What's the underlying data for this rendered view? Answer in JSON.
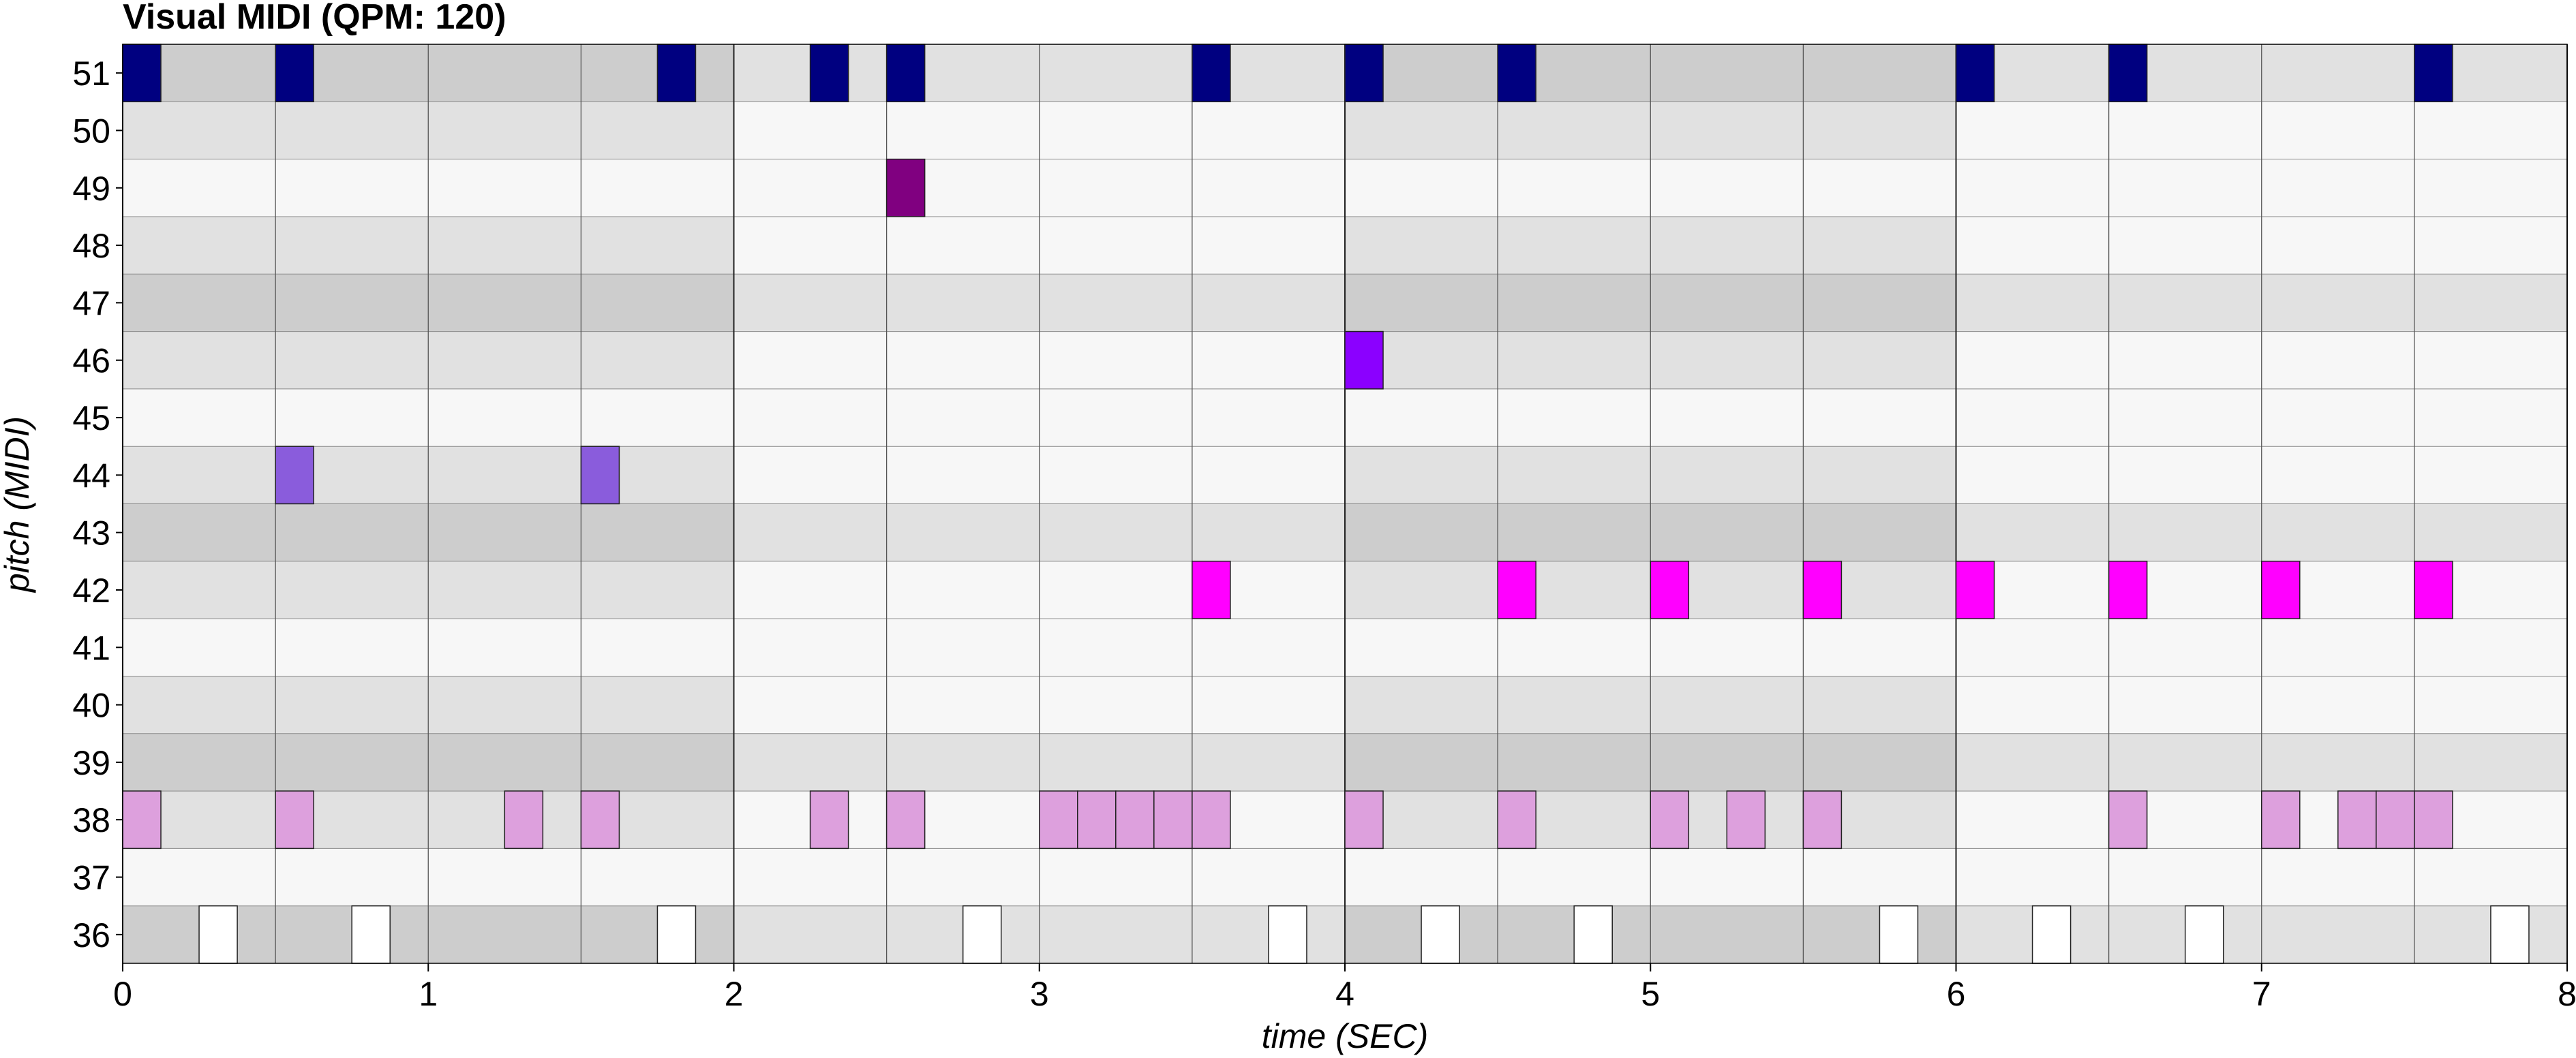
{
  "chart_data": {
    "type": "piano-roll",
    "title": "Visual MIDI (QPM: 120)",
    "xlabel": "time (SEC)",
    "ylabel": "pitch (MIDI)",
    "xlim": [
      0,
      8
    ],
    "ylim": [
      36,
      51
    ],
    "x_ticks": [
      "0",
      "1",
      "2",
      "3",
      "4",
      "5",
      "6",
      "7",
      "8"
    ],
    "y_ticks": [
      "36",
      "37",
      "38",
      "39",
      "40",
      "41",
      "42",
      "43",
      "44",
      "45",
      "46",
      "47",
      "48",
      "49",
      "50",
      "51"
    ],
    "grid": true,
    "beat_lines_sec": 0.5,
    "bar_lines_sec": 2.0,
    "note_duration_sec": 0.125,
    "background_bands": [
      "#cdcdcd",
      "#f7f7f7",
      "#e1e1e1",
      "#cdcdcd",
      "#e1e1e1",
      "#f7f7f7",
      "#e1e1e1",
      "#cdcdcd",
      "#e1e1e1",
      "#f7f7f7",
      "#e1e1e1",
      "#cdcdcd",
      "#e1e1e1",
      "#f7f7f7",
      "#e1e1e1",
      "#cdcdcd"
    ],
    "pitch_colors": {
      "36": "#ffffff",
      "38": "#dda0dd",
      "42": "#ff00ff",
      "44": "#8a5cdc",
      "46": "#8b00ff",
      "49": "#800080",
      "51": "#000080"
    },
    "notes": [
      {
        "pitch": 51,
        "times": [
          0.0,
          0.5,
          1.75,
          2.25,
          2.5,
          3.5,
          4.0,
          4.5,
          6.0,
          6.5,
          7.5
        ]
      },
      {
        "pitch": 49,
        "times": [
          2.5
        ]
      },
      {
        "pitch": 46,
        "times": [
          4.0
        ]
      },
      {
        "pitch": 44,
        "times": [
          0.5,
          1.5
        ]
      },
      {
        "pitch": 42,
        "times": [
          3.5,
          4.5,
          5.0,
          5.5,
          6.0,
          6.5,
          7.0,
          7.5
        ]
      },
      {
        "pitch": 38,
        "times": [
          0.0,
          0.5,
          1.25,
          1.5,
          2.25,
          2.5,
          3.0,
          3.125,
          3.25,
          3.375,
          3.5,
          4.0,
          4.5,
          5.0,
          5.25,
          5.5,
          6.5,
          7.0,
          7.25,
          7.375,
          7.5
        ]
      },
      {
        "pitch": 36,
        "times": [
          0.25,
          0.75,
          1.75,
          2.75,
          3.75,
          4.25,
          4.75,
          5.75,
          6.25,
          6.75,
          7.75
        ]
      }
    ]
  }
}
